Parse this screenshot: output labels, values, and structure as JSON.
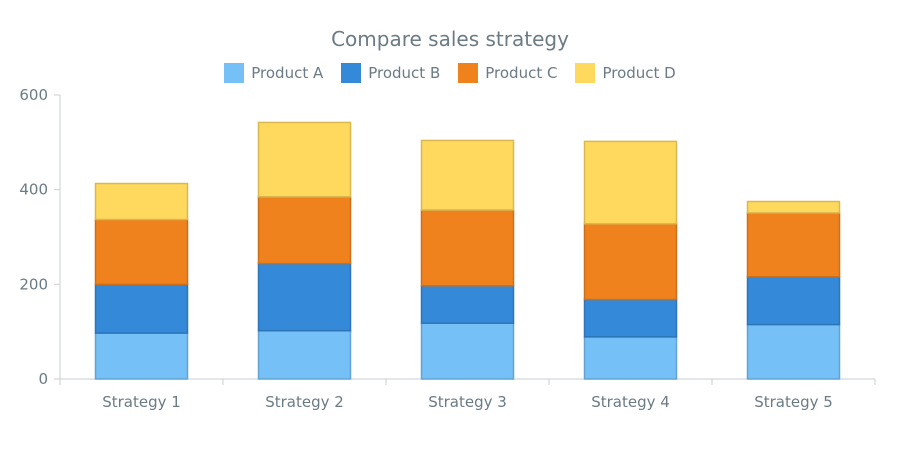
{
  "chart_data": {
    "type": "bar",
    "stacked": true,
    "title": "Compare sales strategy",
    "xlabel": "",
    "ylabel": "",
    "categories": [
      "Strategy 1",
      "Strategy 2",
      "Strategy 3",
      "Strategy 4",
      "Strategy 5"
    ],
    "series": [
      {
        "name": "Product A",
        "color": "#74c0f7",
        "values": [
          97,
          102,
          118,
          89,
          115
        ]
      },
      {
        "name": "Product B",
        "color": "#3589d9",
        "values": [
          103,
          142,
          79,
          79,
          101
        ]
      },
      {
        "name": "Product C",
        "color": "#f0821e",
        "values": [
          137,
          141,
          160,
          160,
          135
        ]
      },
      {
        "name": "Product D",
        "color": "#ffd95e",
        "values": [
          76,
          157,
          147,
          174,
          24
        ]
      }
    ],
    "ylim": [
      0,
      600
    ],
    "yticks": [
      "0",
      "200",
      "400",
      "600"
    ],
    "legend_position": "top-center",
    "grid": false
  }
}
